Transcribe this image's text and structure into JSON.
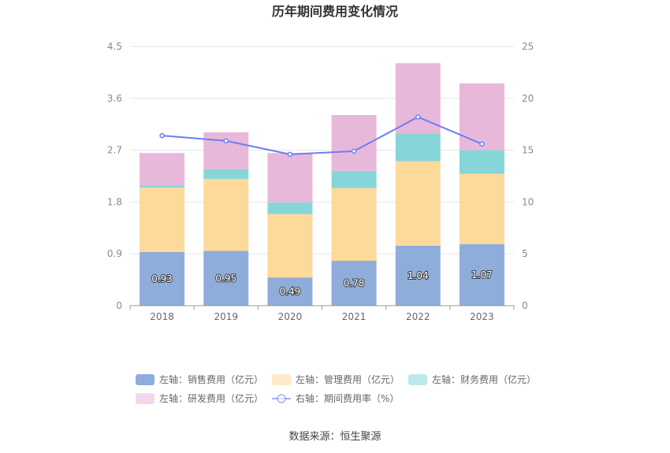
{
  "chart_data": {
    "type": "bar",
    "title": "历年期间费用变化情况",
    "categories": [
      "2018",
      "2019",
      "2020",
      "2021",
      "2022",
      "2023"
    ],
    "stacked": true,
    "y_left": {
      "ylim": [
        0,
        4.5
      ],
      "ticks": [
        "0",
        "0.9",
        "1.8",
        "2.7",
        "3.6",
        "4.5"
      ]
    },
    "y_right": {
      "ylim": [
        0,
        25
      ],
      "ticks": [
        "0",
        "5",
        "10",
        "15",
        "20",
        "25"
      ]
    },
    "series": [
      {
        "name": "左轴：销售费用（亿元）",
        "axis": "left",
        "type": "bar",
        "color": "#8eaddb",
        "values": [
          0.93,
          0.95,
          0.49,
          0.78,
          1.04,
          1.07
        ],
        "labels": [
          "0.93",
          "0.95",
          "0.49",
          "0.78",
          "1.04",
          "1.07"
        ]
      },
      {
        "name": "左轴：管理费用（亿元）",
        "axis": "left",
        "type": "bar",
        "color": "#fdd99a",
        "values": [
          1.12,
          1.25,
          1.1,
          1.26,
          1.47,
          1.22
        ]
      },
      {
        "name": "左轴：财务费用（亿元）",
        "axis": "left",
        "type": "bar",
        "color": "#86d6d9",
        "values": [
          0.04,
          0.17,
          0.2,
          0.3,
          0.48,
          0.41
        ]
      },
      {
        "name": "左轴：研发费用（亿元）",
        "axis": "left",
        "type": "bar",
        "color": "#e8b8da",
        "values": [
          0.56,
          0.64,
          0.86,
          0.97,
          1.22,
          1.16
        ]
      },
      {
        "name": "右轴：期间费用率（%）",
        "axis": "right",
        "type": "line",
        "color": "#6c7ef5",
        "values": [
          16.4,
          15.9,
          14.6,
          14.9,
          18.2,
          15.6
        ]
      }
    ],
    "legend_position": "bottom",
    "grid": true
  },
  "source": "数据来源：恒生聚源"
}
